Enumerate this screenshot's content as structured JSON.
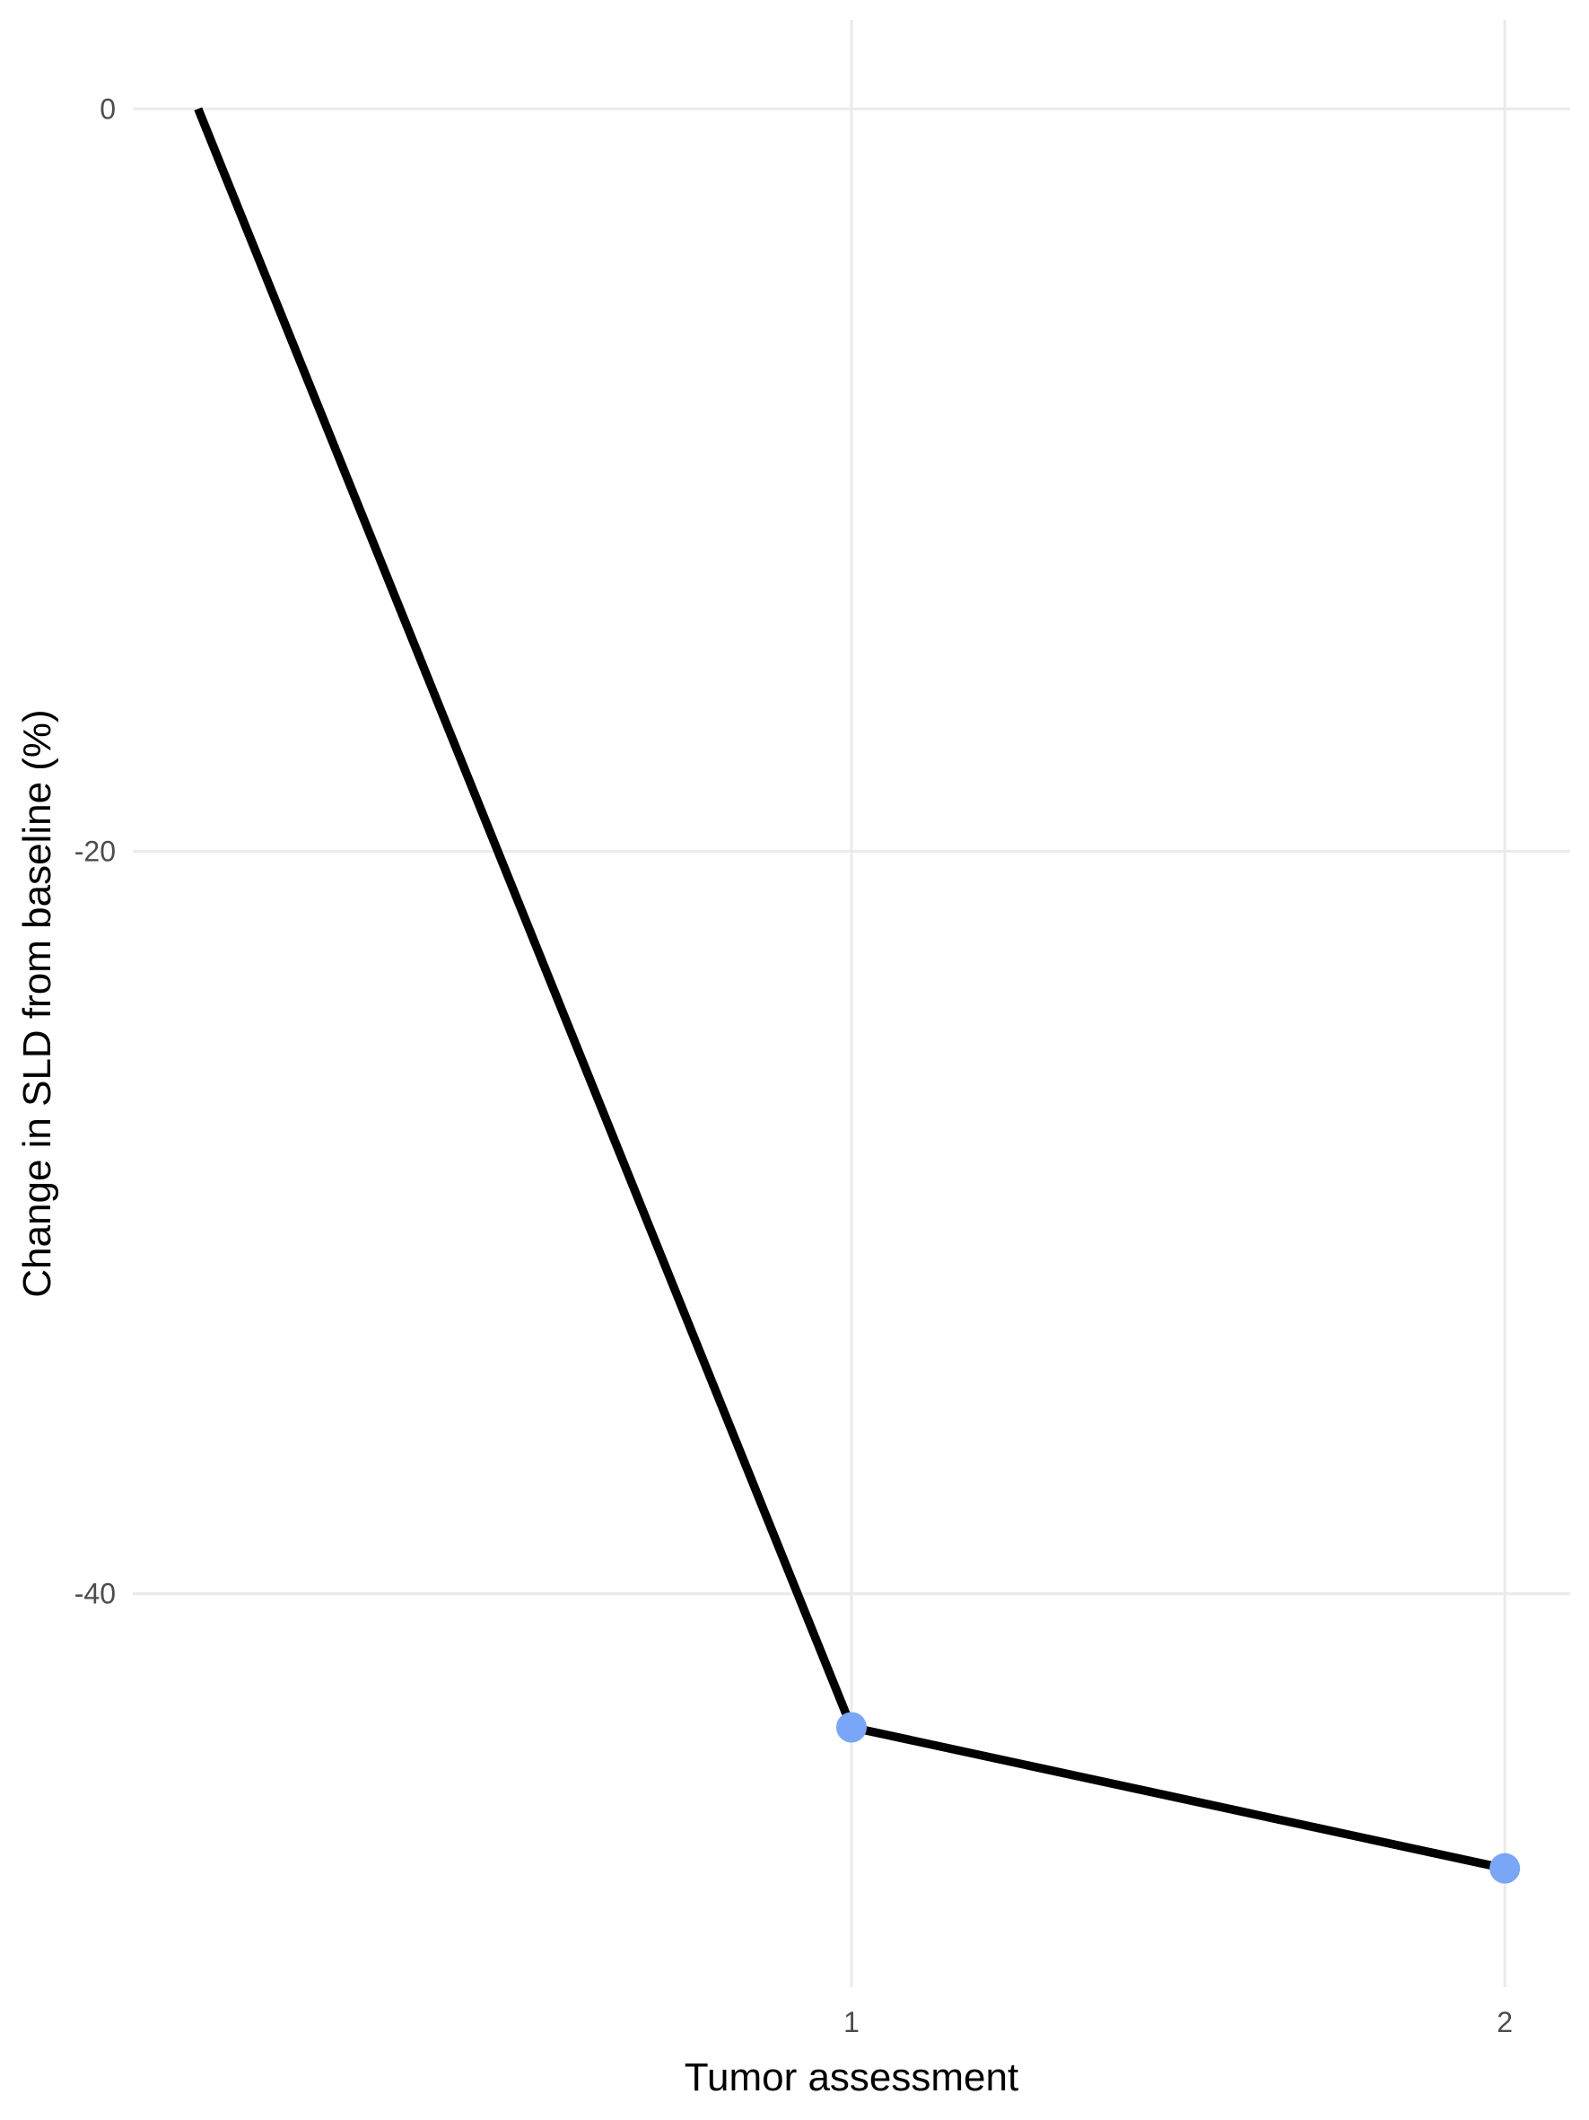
{
  "chart_data": {
    "type": "line",
    "title": "",
    "xlabel": "Tumor assessment",
    "ylabel": "Change in SLD from baseline (%)",
    "x_ticks": [
      "1",
      "2"
    ],
    "x_tick_values": [
      1,
      2
    ],
    "y_ticks": [
      "0",
      "-20",
      "-40"
    ],
    "y_tick_values": [
      0,
      -20,
      -40
    ],
    "xlim": [
      -0.1,
      2.1
    ],
    "ylim": [
      -50.6,
      2.4
    ],
    "grid": true,
    "legend": "none",
    "series": [
      {
        "color": "#000000",
        "marker_color": "#7aa6f8",
        "points": [
          {
            "x": 0,
            "y": 0,
            "marker": false
          },
          {
            "x": 1,
            "y": -43.6,
            "marker": true
          },
          {
            "x": 2,
            "y": -47.4,
            "marker": true
          }
        ]
      }
    ]
  }
}
